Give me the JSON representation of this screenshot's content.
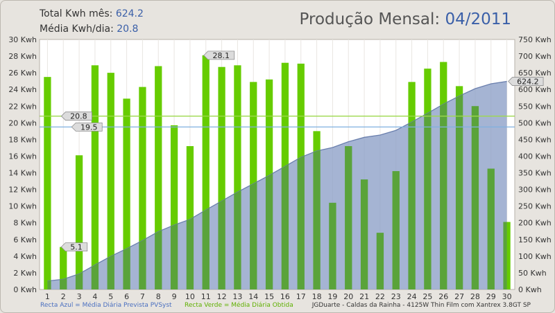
{
  "header": {
    "total_label": "Total Kwh mês:",
    "total_value": "624.2",
    "avg_label": "Média Kwh/dia:",
    "avg_value": "20.8",
    "title_label": "Produção Mensal:",
    "title_period": "04/2011"
  },
  "footer": {
    "blue_legend": "Recta Azul = Média Diária Prevista PVSyst",
    "green_legend": "Recta Verde = Média Diária Obtida",
    "credit": "JGDuarte  -  Caldas da Rainha  -  4125W Thin Film com Xantrex 3.8GT SP"
  },
  "colors": {
    "bar_green": "#66cc00",
    "bar_over_area": "#5aa33a",
    "area_fill": "#8c9fc7",
    "area_line": "#6a7fad",
    "blue_line": "#7fb0e0",
    "green_line": "#9cd84c",
    "plot_bg": "#ffffff"
  },
  "chart_data": {
    "type": "bar",
    "categories": [
      "1",
      "2",
      "3",
      "4",
      "5",
      "6",
      "7",
      "8",
      "9",
      "10",
      "11",
      "12",
      "13",
      "14",
      "15",
      "16",
      "17",
      "18",
      "19",
      "20",
      "21",
      "22",
      "23",
      "24",
      "25",
      "26",
      "27",
      "28",
      "29",
      "30"
    ],
    "series": [
      {
        "axis": "left",
        "values": [
          25.5,
          5.1,
          16.1,
          26.9,
          26.0,
          22.9,
          24.3,
          26.8,
          19.7,
          17.2,
          28.1,
          26.7,
          26.9,
          24.9,
          25.2,
          27.2,
          27.1,
          19.0,
          10.4,
          17.2,
          13.2,
          6.8,
          14.2,
          24.9,
          26.5,
          27.3,
          24.4,
          22.0,
          14.5,
          8.1
        ]
      },
      {
        "axis": "right",
        "type": "area",
        "values": [
          25.5,
          30.6,
          46.7,
          73.6,
          99.6,
          122.5,
          146.8,
          173.6,
          193.3,
          210.5,
          238.6,
          265.3,
          292.2,
          317.1,
          342.3,
          369.5,
          396.6,
          415.6,
          426.0,
          443.2,
          456.4,
          463.2,
          477.4,
          502.3,
          528.8,
          556.1,
          580.5,
          602.5,
          617.0,
          624.2
        ]
      }
    ],
    "reference_lines": [
      {
        "label": "20.8",
        "value": 20.8,
        "color": "green"
      },
      {
        "label": "19.5",
        "value": 19.5,
        "color": "blue"
      }
    ],
    "callouts": [
      {
        "day": "2",
        "label": "5.1"
      },
      {
        "day": "11",
        "label": "28.1"
      },
      {
        "day": "30",
        "label": "624.2",
        "axis": "right"
      }
    ],
    "left_axis": {
      "unit": "Kwh",
      "ylim": [
        0,
        30
      ],
      "step": 2
    },
    "right_axis": {
      "unit": "Kwh",
      "ylim": [
        0,
        750
      ],
      "step": 50
    },
    "grid": "vertical",
    "legend": "bottom"
  }
}
